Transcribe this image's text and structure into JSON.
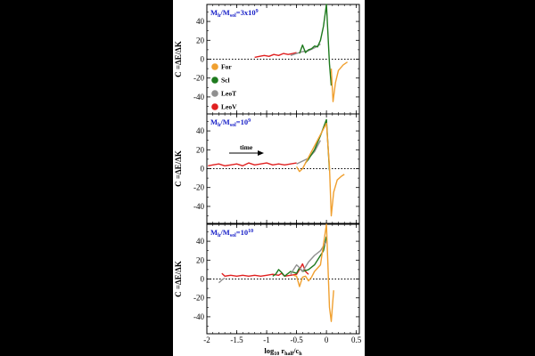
{
  "chart_data": {
    "type": "line",
    "x_tick_labels": [
      "-2",
      "-1.5",
      "-1",
      "-0.5",
      "0",
      "0.5"
    ],
    "y_tick_labels": [
      "-40",
      "-20",
      "0",
      "20",
      "40"
    ],
    "ylabel": "C =ΔE/ΔK",
    "xlabel": {
      "pre": "log",
      "pre_sub": "10",
      "mid": " r",
      "mid_sub": "half",
      "post": "/c",
      "post_sub": "h"
    },
    "xlim": [
      -2,
      0.55
    ],
    "ylim": [
      -58,
      58
    ],
    "grid": false,
    "reference_line": 0,
    "colors": {
      "For": "#f0a030",
      "Scl": "#1e7a1e",
      "LeoT": "#909090",
      "LeoV": "#e02020",
      "title": "#1a22c8"
    },
    "legend": {
      "placement": "top-left of panel 1",
      "entries": [
        "For",
        "Scl",
        "LeoT",
        "LeoV"
      ]
    },
    "annotation": {
      "text": "time",
      "panel": 1
    },
    "panels": [
      {
        "title": {
          "pre": "M",
          "pre_sub": "h",
          "mid": "/M",
          "mid_sub": "sol",
          "post": "=3x10",
          "post_sup": "9"
        },
        "series": [
          {
            "name": "LeoV",
            "x": [
              -1.2,
              -1.12,
              -1.04,
              -0.96,
              -0.88,
              -0.8,
              -0.72,
              -0.64,
              -0.56,
              -0.5
            ],
            "y": [
              2,
              3,
              4,
              3,
              5,
              4,
              6,
              5,
              6,
              7
            ]
          },
          {
            "name": "LeoT",
            "x": [
              -0.6,
              -0.5,
              -0.4,
              -0.3,
              -0.2,
              -0.1
            ],
            "y": [
              4,
              6,
              8,
              9,
              12,
              16
            ]
          },
          {
            "name": "Scl",
            "x": [
              -0.45,
              -0.4,
              -0.35,
              -0.3,
              -0.25,
              -0.2,
              -0.15,
              -0.1,
              -0.05,
              0,
              0.05,
              0.08
            ],
            "y": [
              6,
              15,
              7,
              10,
              11,
              14,
              13,
              20,
              35,
              58,
              -5,
              -28
            ]
          },
          {
            "name": "For",
            "x": [
              0.08,
              0.11,
              0.15,
              0.2,
              0.28,
              0.35
            ],
            "y": [
              -10,
              -45,
              -25,
              -12,
              -6,
              -3
            ]
          }
        ]
      },
      {
        "title": {
          "pre": "M",
          "pre_sub": "h",
          "mid": "/M",
          "mid_sub": "sol",
          "post": "=10",
          "post_sup": "9"
        },
        "series": [
          {
            "name": "LeoV",
            "x": [
              -1.98,
              -1.9,
              -1.8,
              -1.7,
              -1.6,
              -1.5,
              -1.4,
              -1.3,
              -1.2,
              -1.1,
              -1.0,
              -0.9,
              -0.8,
              -0.7,
              -0.6,
              -0.5
            ],
            "y": [
              3,
              4,
              5,
              3,
              4,
              5,
              3,
              6,
              4,
              5,
              6,
              4,
              5,
              4,
              5,
              6
            ]
          },
          {
            "name": "LeoT",
            "x": [
              -0.5,
              -0.4,
              -0.3,
              -0.2,
              -0.1
            ],
            "y": [
              5,
              8,
              11,
              18,
              30
            ]
          },
          {
            "name": "Scl",
            "x": [
              -0.35,
              -0.3,
              -0.2,
              -0.1,
              0,
              0.05
            ],
            "y": [
              6,
              10,
              20,
              35,
              52,
              -2
            ]
          },
          {
            "name": "For",
            "x": [
              -0.5,
              -0.45,
              -0.4,
              0,
              0.05,
              0.08,
              0.12,
              0.18,
              0.25,
              0.3
            ],
            "y": [
              2,
              -3,
              0,
              48,
              2,
              -50,
              -25,
              -12,
              -8,
              -6
            ]
          }
        ]
      },
      {
        "title": {
          "pre": "M",
          "pre_sub": "h",
          "mid": "/M",
          "mid_sub": "sol",
          "post": "=10",
          "post_sup": "10"
        },
        "series": [
          {
            "name": "LeoT",
            "x": [
              -1.8,
              -1.75,
              -1.7
            ],
            "y": [
              -4,
              -1,
              1
            ]
          },
          {
            "name": "LeoV",
            "x": [
              -1.75,
              -1.7,
              -1.6,
              -1.5,
              -1.4,
              -1.3,
              -1.2,
              -1.1,
              -1.0,
              -0.9,
              -0.8,
              -0.75,
              -0.7,
              -0.6,
              -0.5,
              -0.45,
              -0.4,
              -0.35,
              -0.3
            ],
            "y": [
              6,
              3,
              4,
              3,
              4,
              3,
              4,
              3,
              4,
              5,
              4,
              6,
              3,
              4,
              5,
              10,
              16,
              8,
              5
            ]
          },
          {
            "name": "Scl",
            "x": [
              -0.9,
              -0.85,
              -0.8,
              -0.75,
              -0.7,
              -0.6,
              -0.5,
              -0.45,
              -0.4,
              -0.3,
              -0.2,
              -0.1,
              -0.05,
              0
            ],
            "y": [
              3,
              5,
              10,
              7,
              3,
              8,
              6,
              12,
              8,
              10,
              15,
              25,
              30,
              45
            ]
          },
          {
            "name": "LeoT",
            "x": [
              -0.6,
              -0.55,
              -0.5,
              -0.45,
              -0.4,
              -0.3,
              -0.2,
              -0.1,
              0
            ],
            "y": [
              5,
              10,
              15,
              12,
              8,
              18,
              25,
              30,
              40
            ]
          },
          {
            "name": "For",
            "x": [
              -0.55,
              -0.5,
              -0.45,
              -0.4,
              -0.35,
              -0.3,
              -0.25,
              -0.2,
              -0.1,
              0,
              0.05,
              0.08,
              0.12
            ],
            "y": [
              4,
              3,
              -8,
              2,
              3,
              -2,
              2,
              8,
              15,
              58,
              -30,
              -45,
              -12
            ]
          }
        ]
      }
    ]
  }
}
